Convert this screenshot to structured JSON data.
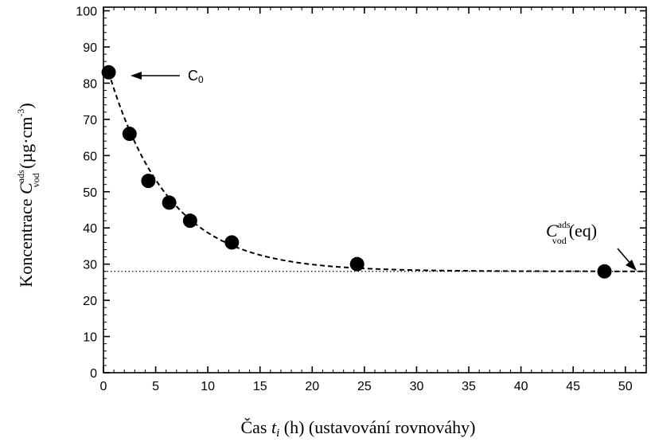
{
  "chart_data": {
    "type": "scatter",
    "x": [
      0.5,
      2.5,
      4.3,
      6.3,
      8.3,
      12.3,
      24.3,
      48.0
    ],
    "y": [
      83,
      66,
      53,
      47,
      42,
      36,
      30,
      28
    ],
    "xlim": [
      0,
      52
    ],
    "ylim": [
      0,
      101
    ],
    "x_ticks": [
      0,
      5,
      10,
      15,
      20,
      25,
      30,
      35,
      40,
      45,
      50
    ],
    "y_ticks": [
      0,
      10,
      20,
      30,
      40,
      50,
      60,
      70,
      80,
      90,
      100
    ],
    "xlabel": {
      "prefix": "Čas ",
      "var": "t",
      "sub": "i",
      "suffix": " (h) (ustavování rovnováhy)"
    },
    "ylabel": {
      "prefix": "Koncentrace ",
      "var": "C",
      "sub": "vod",
      "sup": "ads",
      "unit": " (µg·cm",
      "unit_sup": "-3",
      "unit_end": ")"
    },
    "fit_curve": {
      "style": "dashed",
      "equilibrium": 28,
      "c0": 83,
      "x0": 0.5,
      "tau": 5.8
    },
    "equilibrium_line": {
      "y": 28,
      "style": "dotted"
    },
    "annotations": {
      "c0": {
        "text": "C",
        "sub": "0"
      },
      "eq": {
        "var": "C",
        "sub": "vod",
        "sup": "ads",
        "text": "(eq)"
      }
    },
    "grid": false,
    "legend": "none",
    "marker_color": "#000000"
  }
}
